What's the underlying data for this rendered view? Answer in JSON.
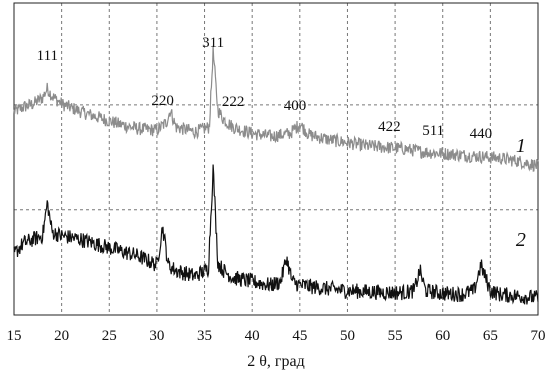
{
  "chart_data": {
    "type": "line",
    "xlabel": "2 θ, град",
    "ylabel": "",
    "xlim": [
      15,
      70
    ],
    "grid": "dashed",
    "x_ticks": [
      15,
      20,
      25,
      30,
      35,
      40,
      45,
      50,
      55,
      60,
      65,
      70
    ],
    "peak_labels": [
      {
        "text": "111",
        "x": 18.5
      },
      {
        "text": "220",
        "x": 30.6
      },
      {
        "text": "311",
        "x": 35.9
      },
      {
        "text": "222",
        "x": 38.0
      },
      {
        "text": "400",
        "x": 44.5
      },
      {
        "text": "422",
        "x": 54.4
      },
      {
        "text": "511",
        "x": 59.0
      },
      {
        "text": "440",
        "x": 64.0
      }
    ],
    "series": [
      {
        "label": "1",
        "color": "#8c8c8c",
        "x": [
          15,
          16,
          17,
          18,
          18.5,
          19,
          20,
          22,
          24,
          26,
          28,
          30,
          31,
          31.4,
          32,
          34,
          35.5,
          35.9,
          36.4,
          37,
          38,
          40,
          42,
          44,
          45,
          46,
          48,
          50,
          52,
          54,
          56,
          58,
          60,
          62,
          64,
          66,
          68,
          70
        ],
        "y": [
          0.57,
          0.6,
          0.62,
          0.66,
          0.72,
          0.67,
          0.62,
          0.57,
          0.53,
          0.49,
          0.46,
          0.45,
          0.5,
          0.58,
          0.47,
          0.44,
          0.47,
          0.96,
          0.58,
          0.52,
          0.47,
          0.43,
          0.41,
          0.43,
          0.49,
          0.42,
          0.39,
          0.37,
          0.35,
          0.34,
          0.33,
          0.31,
          0.3,
          0.29,
          0.28,
          0.27,
          0.25,
          0.22
        ]
      },
      {
        "label": "2",
        "color": "#111111",
        "x": [
          15,
          16,
          17,
          18,
          18.5,
          19,
          20,
          22,
          24,
          26,
          28,
          30,
          30.6,
          31.2,
          32,
          34,
          35.4,
          35.9,
          36.4,
          37,
          38,
          40,
          42,
          43,
          43.6,
          44.2,
          45,
          48,
          50,
          52,
          54,
          56,
          57,
          57.6,
          58.2,
          60,
          62,
          63.3,
          64,
          65,
          66,
          68,
          70
        ],
        "y": [
          0.24,
          0.3,
          0.32,
          0.34,
          0.52,
          0.36,
          0.34,
          0.32,
          0.29,
          0.26,
          0.23,
          0.18,
          0.39,
          0.18,
          0.15,
          0.12,
          0.16,
          0.71,
          0.19,
          0.15,
          0.11,
          0.09,
          0.07,
          0.09,
          0.22,
          0.09,
          0.07,
          0.05,
          0.04,
          0.035,
          0.03,
          0.03,
          0.04,
          0.15,
          0.04,
          0.025,
          0.02,
          0.04,
          0.18,
          0.04,
          0.02,
          0.01,
          0.0
        ]
      }
    ]
  }
}
